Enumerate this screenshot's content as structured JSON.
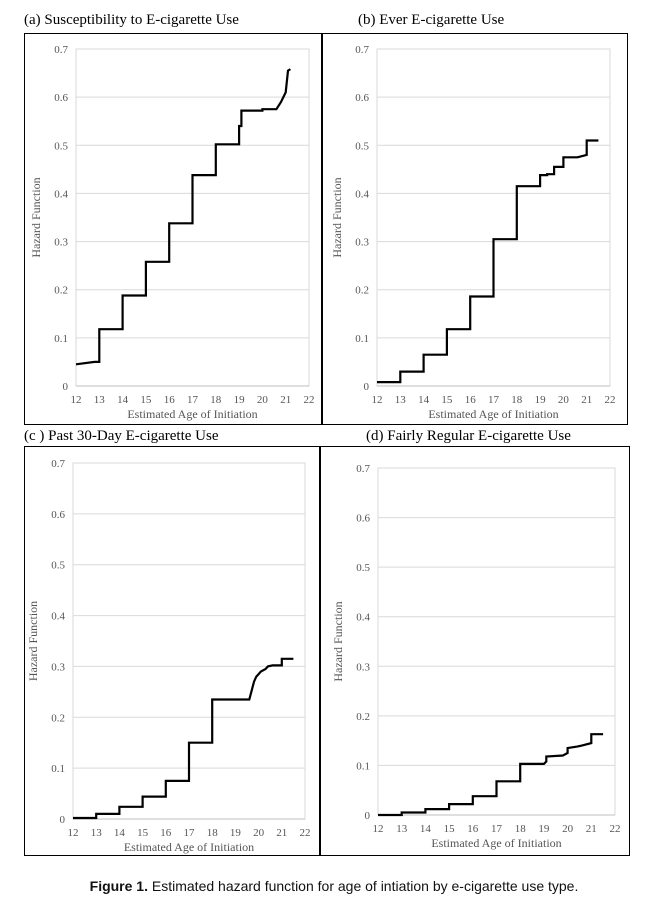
{
  "figure": {
    "caption_label": "Figure 1.",
    "caption_text": " Estimated hazard function for age of intiation by e-cigarette use type."
  },
  "chart_data": [
    {
      "type": "line",
      "title": "(a) Susceptibility to E-cigarette Use",
      "xlabel": "Estimated Age of Initiation",
      "ylabel": "Hazard Function",
      "xlim": [
        12,
        22
      ],
      "ylim": [
        0,
        0.7
      ],
      "xticks": [
        12,
        13,
        14,
        15,
        16,
        17,
        18,
        19,
        20,
        21,
        22
      ],
      "yticks": [
        0,
        0.1,
        0.2,
        0.3,
        0.4,
        0.5,
        0.6,
        0.7
      ],
      "ytick_labels": [
        "0",
        "0.1",
        "0.2",
        "0.3",
        "0.4",
        "0.5",
        "0.6",
        "0.7"
      ],
      "grid": "horizontal",
      "x": [
        12.0,
        12.8,
        13.0,
        13.0,
        14.0,
        14.0,
        15.0,
        15.0,
        16.0,
        16.0,
        17.0,
        17.0,
        18.0,
        18.0,
        19.0,
        19.0,
        19.1,
        19.1,
        20.0,
        20.0,
        20.6,
        20.8,
        21.0,
        21.1,
        21.2
      ],
      "y": [
        0.045,
        0.05,
        0.05,
        0.118,
        0.118,
        0.188,
        0.188,
        0.258,
        0.258,
        0.338,
        0.338,
        0.438,
        0.438,
        0.502,
        0.502,
        0.54,
        0.54,
        0.572,
        0.572,
        0.575,
        0.575,
        0.59,
        0.61,
        0.655,
        0.658
      ]
    },
    {
      "type": "line",
      "title": "(b) Ever E-cigarette Use",
      "xlabel": "Estimated Age of Initiation",
      "ylabel": "Hazard Function",
      "xlim": [
        12,
        22
      ],
      "ylim": [
        0,
        0.7
      ],
      "xticks": [
        12,
        13,
        14,
        15,
        16,
        17,
        18,
        19,
        20,
        21,
        22
      ],
      "yticks": [
        0,
        0.1,
        0.2,
        0.3,
        0.4,
        0.5,
        0.6,
        0.7
      ],
      "ytick_labels": [
        "0",
        "0.1",
        "0.2",
        "0.3",
        "0.4",
        "0.5",
        "0.6",
        "0.7"
      ],
      "grid": "horizontal",
      "x": [
        12.0,
        13.0,
        13.0,
        14.0,
        14.0,
        15.0,
        15.0,
        16.0,
        16.0,
        17.0,
        17.0,
        18.0,
        18.0,
        19.0,
        19.0,
        19.3,
        19.3,
        19.6,
        19.6,
        20.0,
        20.0,
        20.6,
        21.0,
        21.0,
        21.5
      ],
      "y": [
        0.008,
        0.008,
        0.03,
        0.03,
        0.065,
        0.065,
        0.118,
        0.118,
        0.186,
        0.186,
        0.305,
        0.305,
        0.415,
        0.415,
        0.438,
        0.438,
        0.44,
        0.44,
        0.455,
        0.455,
        0.475,
        0.475,
        0.48,
        0.51,
        0.51
      ]
    },
    {
      "type": "line",
      "title": "(c ) Past 30-Day E-cigarette Use",
      "xlabel": "Estimated Age of Initiation",
      "ylabel": "Hazard Function",
      "xlim": [
        12,
        22
      ],
      "ylim": [
        0,
        0.7
      ],
      "xticks": [
        12,
        13,
        14,
        15,
        16,
        17,
        18,
        19,
        20,
        21,
        22
      ],
      "yticks": [
        0,
        0.1,
        0.2,
        0.3,
        0.4,
        0.5,
        0.6,
        0.7
      ],
      "ytick_labels": [
        "0",
        "0.1",
        "0.2",
        "0.3",
        "0.4",
        "0.5",
        "0.6",
        "0.7"
      ],
      "grid": "horizontal",
      "x": [
        12.0,
        13.0,
        13.0,
        14.0,
        14.0,
        15.0,
        15.0,
        16.0,
        16.0,
        17.0,
        17.0,
        18.0,
        18.0,
        19.6,
        19.8,
        19.9,
        20.0,
        20.1,
        20.3,
        20.4,
        20.6,
        21.0,
        21.0,
        21.5
      ],
      "y": [
        0.002,
        0.002,
        0.01,
        0.01,
        0.024,
        0.024,
        0.044,
        0.044,
        0.075,
        0.075,
        0.15,
        0.15,
        0.235,
        0.235,
        0.27,
        0.28,
        0.285,
        0.29,
        0.295,
        0.3,
        0.302,
        0.302,
        0.315,
        0.315
      ]
    },
    {
      "type": "line",
      "title": "(d) Fairly Regular E-cigarette Use",
      "xlabel": "Estimated Age of Initiation",
      "ylabel": "Hazard Function",
      "xlim": [
        12,
        22
      ],
      "ylim": [
        0,
        0.7
      ],
      "xticks": [
        12,
        13,
        14,
        15,
        16,
        17,
        18,
        19,
        20,
        21,
        22
      ],
      "yticks": [
        0,
        0.1,
        0.2,
        0.3,
        0.4,
        0.5,
        0.6,
        0.7
      ],
      "ytick_labels": [
        "0",
        "0.1",
        "0.2",
        "0.3",
        "0.4",
        "0.5",
        "0.6",
        "0.7"
      ],
      "grid": "horizontal",
      "x": [
        12.0,
        13.0,
        13.0,
        14.0,
        14.0,
        15.0,
        15.0,
        16.0,
        16.0,
        17.0,
        17.0,
        18.0,
        18.0,
        19.0,
        19.1,
        19.1,
        19.8,
        20.0,
        20.0,
        20.4,
        20.6,
        21.0,
        21.0,
        21.5
      ],
      "y": [
        0.0,
        0.0,
        0.005,
        0.005,
        0.012,
        0.012,
        0.022,
        0.022,
        0.038,
        0.038,
        0.068,
        0.068,
        0.103,
        0.103,
        0.108,
        0.118,
        0.12,
        0.125,
        0.135,
        0.138,
        0.14,
        0.145,
        0.163,
        0.163
      ]
    }
  ]
}
